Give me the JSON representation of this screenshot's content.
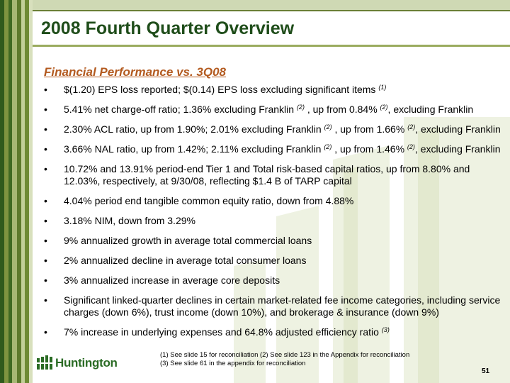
{
  "slide": {
    "title": "2008 Fourth Quarter Overview",
    "subtitle": "Financial Performance vs. 3Q08",
    "page_number": "51"
  },
  "bullet_glyph": "•",
  "bullets": [
    {
      "segments": [
        {
          "text": "$(1.20) EPS loss reported; $(0.14) EPS loss excluding significant items "
        },
        {
          "sup": "(1)"
        }
      ]
    },
    {
      "segments": [
        {
          "text": "5.41% net charge-off ratio; 1.36% excluding Franklin "
        },
        {
          "sup": "(2)"
        },
        {
          "text": " , up from 0.84% "
        },
        {
          "sup": "(2)"
        },
        {
          "text": ", excluding Franklin"
        }
      ]
    },
    {
      "segments": [
        {
          "text": "2.30% ACL ratio, up from 1.90%; 2.01% excluding Franklin "
        },
        {
          "sup": "(2)"
        },
        {
          "text": " , up from 1.66% "
        },
        {
          "sup": "(2)"
        },
        {
          "text": ", excluding Franklin"
        }
      ]
    },
    {
      "segments": [
        {
          "text": "3.66% NAL ratio, up from 1.42%; 2.11% excluding Franklin "
        },
        {
          "sup": "(2)"
        },
        {
          "text": " , up from 1.46% "
        },
        {
          "sup": "(2)"
        },
        {
          "text": ", excluding Franklin"
        }
      ]
    },
    {
      "segments": [
        {
          "text": "10.72% and 13.91% period-end Tier 1 and Total risk-based capital ratios, up from 8.80% and 12.03%, respectively, at 9/30/08, reflecting $1.4 B of TARP capital"
        }
      ]
    },
    {
      "segments": [
        {
          "text": "4.04% period end tangible common equity ratio, down from 4.88%"
        }
      ]
    },
    {
      "segments": [
        {
          "text": "3.18% NIM, down from 3.29%"
        }
      ]
    },
    {
      "segments": [
        {
          "text": "9% annualized growth in average total commercial loans"
        }
      ]
    },
    {
      "segments": [
        {
          "text": "2% annualized decline in average total consumer loans"
        }
      ]
    },
    {
      "segments": [
        {
          "text": "3% annualized increase in average core deposits"
        }
      ]
    },
    {
      "segments": [
        {
          "text": "Significant linked-quarter declines in certain market-related fee income categories, including service charges (down 6%), trust income (down 10%), and brokerage & insurance (down 9%)"
        }
      ]
    },
    {
      "segments": [
        {
          "text": "7% increase in underlying expenses and 64.8% adjusted efficiency ratio "
        },
        {
          "sup": "(3)"
        }
      ]
    }
  ],
  "footnotes": {
    "line1": "(1)  See slide 15 for reconciliation   (2) See slide 123 in the Appendix for reconciliation",
    "line2": "(3)  See slide 61 in the appendix for reconciliation"
  },
  "logo": {
    "text": "Huntington",
    "icon": "huntington-logo-icon"
  },
  "colors": {
    "title": "#1f4d1a",
    "subtitle": "#b35a1f",
    "stripe_dark": "#2f5a1c",
    "stripe_mid": "#6e8a34",
    "stripe_light": "#b6c58a",
    "background_art": "#eef2e2"
  }
}
